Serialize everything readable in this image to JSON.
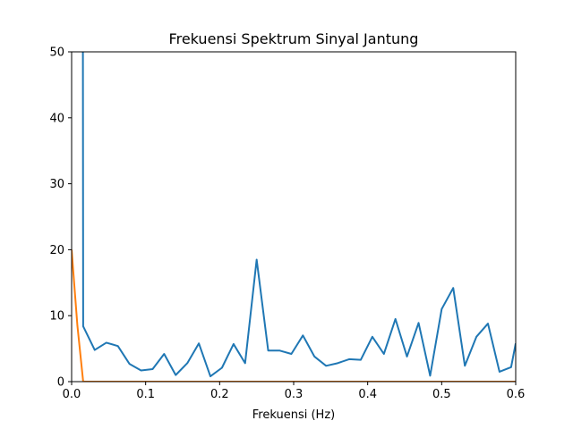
{
  "chart_data": {
    "type": "line",
    "title": "Frekuensi Spektrum Sinyal Jantung",
    "xlabel": "Frekuensi (Hz)",
    "ylabel": "",
    "xlim": [
      0,
      0.6
    ],
    "ylim": [
      0,
      50
    ],
    "xticks": [
      0.0,
      0.1,
      0.2,
      0.3,
      0.4,
      0.5,
      0.6
    ],
    "xtick_labels": [
      "0.0",
      "0.1",
      "0.2",
      "0.3",
      "0.4",
      "0.5",
      "0.6"
    ],
    "yticks": [
      0,
      10,
      20,
      30,
      40,
      50
    ],
    "ytick_labels": [
      "0",
      "10",
      "20",
      "30",
      "40",
      "50"
    ],
    "grid": false,
    "colors": [
      "#1f77b4",
      "#ff7f0e"
    ],
    "series": [
      {
        "color": "#1f77b4",
        "x": [
          0.0,
          0.0152,
          0.0156,
          0.0312,
          0.0469,
          0.0625,
          0.0781,
          0.0938,
          0.1094,
          0.125,
          0.1406,
          0.1563,
          0.1719,
          0.1875,
          0.2031,
          0.2188,
          0.2344,
          0.25,
          0.2656,
          0.2813,
          0.2969,
          0.3125,
          0.3281,
          0.3438,
          0.3594,
          0.375,
          0.3906,
          0.4063,
          0.4219,
          0.4375,
          0.4531,
          0.4688,
          0.4844,
          0.5,
          0.5156,
          0.5313,
          0.5469,
          0.5625,
          0.5781,
          0.5938,
          0.6
        ],
        "y": [
          55,
          55,
          8.4,
          4.8,
          5.9,
          5.4,
          2.7,
          1.7,
          1.9,
          4.2,
          1.0,
          2.8,
          5.8,
          0.8,
          2.1,
          5.7,
          2.8,
          18.5,
          4.7,
          4.7,
          4.2,
          7.0,
          3.8,
          2.4,
          2.8,
          3.4,
          3.3,
          6.8,
          4.2,
          9.5,
          3.8,
          8.9,
          0.9,
          11.0,
          14.2,
          2.4,
          6.8,
          8.8,
          1.5,
          2.2,
          5.8
        ]
      },
      {
        "color": "#ff7f0e",
        "x": [
          0.0,
          0.0078,
          0.0156,
          0.0312,
          0.6
        ],
        "y": [
          20,
          8.5,
          0,
          0,
          0
        ]
      }
    ]
  }
}
